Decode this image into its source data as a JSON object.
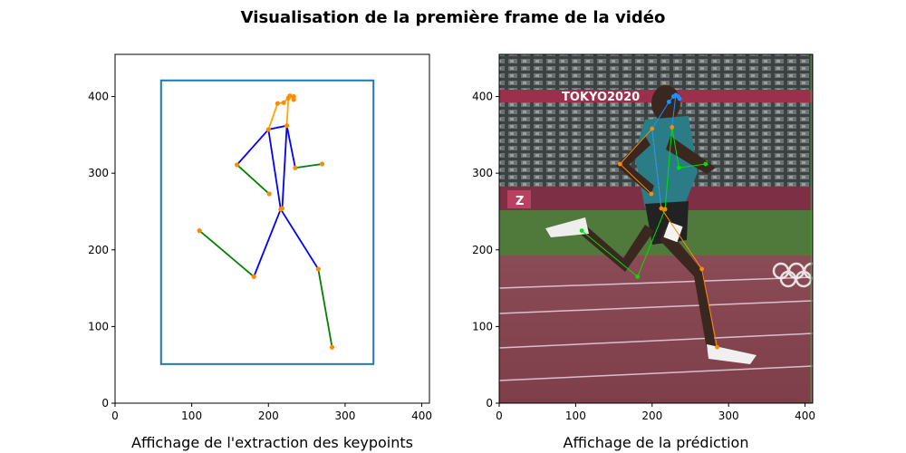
{
  "figure": {
    "title": "Visualisation de la première frame de la vidéo"
  },
  "chart_data": [
    {
      "type": "line",
      "xlabel": "Affichage de l'extraction des keypoints",
      "ylabel": "",
      "xlim": [
        0,
        410
      ],
      "ylim": [
        0,
        455
      ],
      "xticks": [
        0,
        100,
        200,
        300,
        400
      ],
      "yticks": [
        0,
        100,
        200,
        300,
        400
      ],
      "grid": false,
      "bounding_box": {
        "x0": 60,
        "y0": 51,
        "x1": 337,
        "y1": 421,
        "color": "#1f77b4"
      },
      "keypoints": [
        {
          "x": 220,
          "y": 392
        },
        {
          "x": 226,
          "y": 398
        },
        {
          "x": 233,
          "y": 400
        },
        {
          "x": 233,
          "y": 396
        },
        {
          "x": 228,
          "y": 401
        },
        {
          "x": 212,
          "y": 391
        },
        {
          "x": 224,
          "y": 362
        },
        {
          "x": 200,
          "y": 357
        },
        {
          "x": 235,
          "y": 307
        },
        {
          "x": 159,
          "y": 311
        },
        {
          "x": 270,
          "y": 312
        },
        {
          "x": 201,
          "y": 273
        },
        {
          "x": 216,
          "y": 253
        },
        {
          "x": 218,
          "y": 254
        },
        {
          "x": 265,
          "y": 175
        },
        {
          "x": 181,
          "y": 165
        },
        {
          "x": 283,
          "y": 73
        },
        {
          "x": 110,
          "y": 225
        }
      ],
      "segments": [
        {
          "color": "#ffa500",
          "points": [
            [
              200,
              357
            ],
            [
              212,
              391
            ],
            [
              220,
              392
            ],
            [
              226,
              398
            ],
            [
              233,
              400
            ]
          ]
        },
        {
          "color": "#ffa500",
          "points": [
            [
              224,
              362
            ],
            [
              226,
              398
            ],
            [
              228,
              401
            ],
            [
              233,
              396
            ]
          ]
        },
        {
          "color": "#0000ff",
          "points": [
            [
              200,
              357
            ],
            [
              224,
              362
            ],
            [
              235,
              307
            ]
          ]
        },
        {
          "color": "#0000ff",
          "points": [
            [
              200,
              357
            ],
            [
              159,
              311
            ]
          ]
        },
        {
          "color": "#0000ff",
          "points": [
            [
              200,
              357
            ],
            [
              216,
              253
            ],
            [
              218,
              254
            ],
            [
              224,
              362
            ]
          ]
        },
        {
          "color": "#0000ff",
          "points": [
            [
              181,
              165
            ],
            [
              216,
              253
            ],
            [
              265,
              175
            ]
          ]
        },
        {
          "color": "#008000",
          "points": [
            [
              235,
              307
            ],
            [
              270,
              312
            ]
          ]
        },
        {
          "color": "#008000",
          "points": [
            [
              159,
              311
            ],
            [
              201,
              273
            ]
          ]
        },
        {
          "color": "#008000",
          "points": [
            [
              265,
              175
            ],
            [
              283,
              73
            ]
          ]
        },
        {
          "color": "#008000",
          "points": [
            [
              181,
              165
            ],
            [
              110,
              225
            ]
          ]
        }
      ]
    },
    {
      "type": "line",
      "xlabel": "Affichage de la prédiction",
      "ylabel": "",
      "xlim": [
        0,
        410
      ],
      "ylim": [
        0,
        455
      ],
      "xticks": [
        0,
        100,
        200,
        300,
        400
      ],
      "yticks": [
        0,
        100,
        200,
        300,
        400
      ],
      "grid": false,
      "background": "video-frame",
      "frame_text": [
        "TOKYO2020",
        "Z"
      ],
      "keypoints": [
        {
          "x": 222,
          "y": 393
        },
        {
          "x": 228,
          "y": 400
        },
        {
          "x": 234,
          "y": 400
        },
        {
          "x": 236,
          "y": 397
        },
        {
          "x": 231,
          "y": 402
        },
        {
          "x": 200,
          "y": 358
        },
        {
          "x": 226,
          "y": 360
        },
        {
          "x": 235,
          "y": 307
        },
        {
          "x": 158,
          "y": 312
        },
        {
          "x": 270,
          "y": 312
        },
        {
          "x": 199,
          "y": 273
        },
        {
          "x": 212,
          "y": 254
        },
        {
          "x": 217,
          "y": 253
        },
        {
          "x": 265,
          "y": 175
        },
        {
          "x": 181,
          "y": 165
        },
        {
          "x": 285,
          "y": 73
        },
        {
          "x": 108,
          "y": 225
        }
      ],
      "segments": [
        {
          "color": "#1e90ff",
          "points": [
            [
              222,
              393
            ],
            [
              228,
              400
            ],
            [
              234,
              400
            ],
            [
              236,
              397
            ]
          ]
        },
        {
          "color": "#1e90ff",
          "points": [
            [
              200,
              358
            ],
            [
              222,
              393
            ]
          ]
        },
        {
          "color": "#1e90ff",
          "points": [
            [
              226,
              360
            ],
            [
              231,
              402
            ]
          ]
        },
        {
          "color": "#00e000",
          "points": [
            [
              226,
              360
            ],
            [
              235,
              307
            ],
            [
              270,
              312
            ]
          ]
        },
        {
          "color": "#00e000",
          "points": [
            [
              226,
              360
            ],
            [
              217,
              253
            ],
            [
              181,
              165
            ],
            [
              108,
              225
            ]
          ]
        },
        {
          "color": "#ff8c00",
          "points": [
            [
              200,
              358
            ],
            [
              158,
              312
            ],
            [
              199,
              273
            ]
          ]
        },
        {
          "color": "#ff8c00",
          "points": [
            [
              200,
              358
            ],
            [
              212,
              254
            ],
            [
              265,
              175
            ],
            [
              285,
              73
            ]
          ]
        },
        {
          "color": "#1e90ff",
          "points": [
            [
              200,
              358
            ],
            [
              212,
              254
            ]
          ]
        },
        {
          "color": "#00e000",
          "points": [
            [
              408,
              0
            ],
            [
              408,
              455
            ]
          ]
        }
      ]
    }
  ]
}
